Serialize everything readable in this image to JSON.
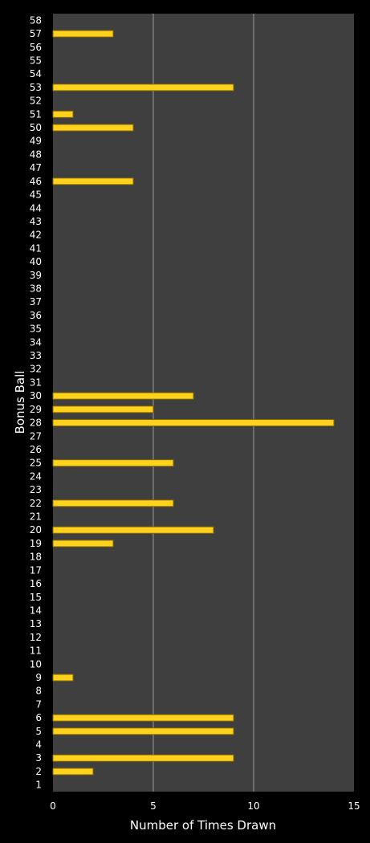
{
  "chart_data": {
    "type": "bar",
    "orientation": "horizontal",
    "title": "",
    "xlabel": "Number of Times Drawn",
    "ylabel": "Bonus Ball",
    "xlim": [
      0,
      15
    ],
    "xticks": [
      0,
      5,
      10,
      15
    ],
    "grid": true,
    "colors": {
      "background": "#000000",
      "plot_area": "#3f3f3f",
      "bar_fill": "#ffd21e",
      "bar_edge": "#8a6a00",
      "gridline": "#9a9a9a",
      "text": "#ffffff"
    },
    "categories": [
      "1",
      "2",
      "3",
      "4",
      "5",
      "6",
      "7",
      "8",
      "9",
      "10",
      "11",
      "12",
      "13",
      "14",
      "15",
      "16",
      "17",
      "18",
      "19",
      "20",
      "21",
      "22",
      "23",
      "24",
      "25",
      "26",
      "27",
      "28",
      "29",
      "30",
      "31",
      "32",
      "33",
      "34",
      "35",
      "36",
      "37",
      "38",
      "39",
      "40",
      "41",
      "42",
      "43",
      "44",
      "45",
      "46",
      "47",
      "48",
      "49",
      "50",
      "51",
      "52",
      "53",
      "54",
      "55",
      "56",
      "57",
      "58"
    ],
    "values": [
      0,
      2,
      9,
      0,
      9,
      9,
      0,
      0,
      1,
      0,
      0,
      0,
      0,
      0,
      0,
      0,
      0,
      0,
      3,
      8,
      0,
      6,
      0,
      0,
      6,
      0,
      0,
      14,
      5,
      7,
      0,
      0,
      0,
      0,
      0,
      0,
      0,
      0,
      0,
      0,
      0,
      0,
      0,
      0,
      0,
      4,
      0,
      0,
      0,
      4,
      1,
      0,
      9,
      0,
      0,
      0,
      3,
      0
    ]
  }
}
